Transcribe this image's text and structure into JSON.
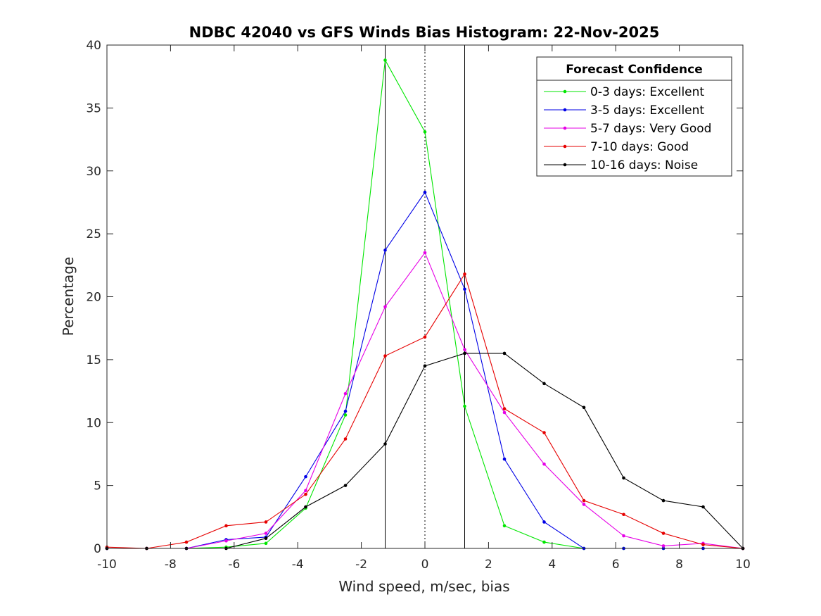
{
  "chart_data": {
    "type": "line",
    "title": "NDBC 42040 vs GFS Winds Bias Histogram: 22-Nov-2025",
    "xlabel": "Wind speed, m/sec, bias",
    "ylabel": "Percentage",
    "xlim": [
      -10,
      10
    ],
    "ylim": [
      0,
      40
    ],
    "xticks": [
      -10,
      -8,
      -6,
      -4,
      -2,
      0,
      2,
      4,
      6,
      8,
      10
    ],
    "yticks": [
      0,
      5,
      10,
      15,
      20,
      25,
      30,
      35,
      40
    ],
    "x": [
      -10,
      -8.75,
      -7.5,
      -6.25,
      -5,
      -3.75,
      -2.5,
      -1.25,
      0,
      1.25,
      2.5,
      3.75,
      5,
      6.25,
      7.5,
      8.75,
      10
    ],
    "reference_lines": [
      {
        "x": -1.25,
        "style": "solid"
      },
      {
        "x": 0,
        "style": "dotted"
      },
      {
        "x": 1.25,
        "style": "solid"
      }
    ],
    "legend": {
      "title": "Forecast Confidence",
      "location": "top-right"
    },
    "series": [
      {
        "name": "0-3 days: Excellent",
        "color": "#00e600",
        "values": [
          0,
          0,
          0,
          0.1,
          0.4,
          3.2,
          10.6,
          38.8,
          33.1,
          11.3,
          1.8,
          0.5,
          0,
          0,
          0,
          0,
          0
        ]
      },
      {
        "name": "3-5 days: Excellent",
        "color": "#0000e6",
        "values": [
          0,
          0,
          0,
          0.7,
          0.9,
          5.7,
          10.9,
          23.7,
          28.3,
          20.6,
          7.1,
          2.1,
          0,
          0,
          0,
          0,
          0
        ]
      },
      {
        "name": "5-7 days: Very Good",
        "color": "#e600e6",
        "values": [
          0,
          0,
          0,
          0.6,
          1.2,
          4.6,
          12.3,
          19.2,
          23.5,
          15.8,
          10.8,
          6.7,
          3.5,
          1.0,
          0.2,
          0.4,
          0
        ]
      },
      {
        "name": "7-10 days: Good",
        "color": "#e60000",
        "values": [
          0.1,
          0,
          0.5,
          1.8,
          2.1,
          4.3,
          8.7,
          15.3,
          16.8,
          21.8,
          11.1,
          9.2,
          3.8,
          2.7,
          1.2,
          0.3,
          0
        ]
      },
      {
        "name": "10-16 days: Noise",
        "color": "#000000",
        "values": [
          0,
          0,
          0,
          0,
          0.8,
          3.3,
          5.0,
          8.3,
          14.5,
          15.5,
          15.5,
          13.1,
          11.2,
          5.6,
          3.8,
          3.3,
          0
        ]
      }
    ]
  }
}
